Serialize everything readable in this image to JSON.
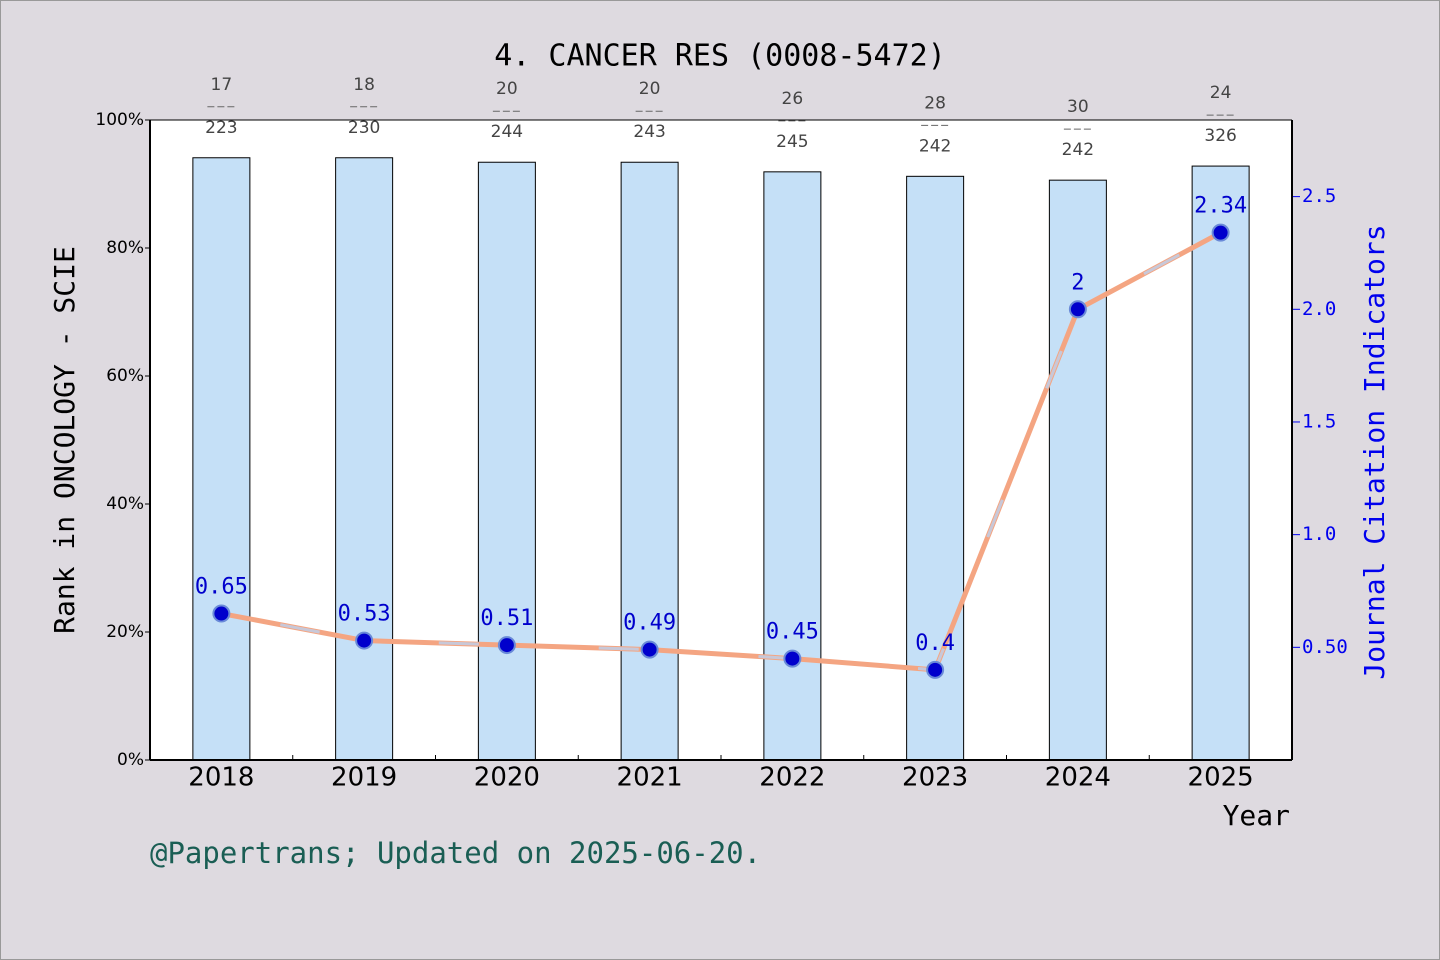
{
  "chart_data": {
    "type": "bar_line",
    "title": "4. CANCER RES (0008-5472)",
    "ylabel": "Rank in ONCOLOGY - SCIE",
    "y2label": "Journal Citation Indicators",
    "xlabel": "Year",
    "footer": "@Papertrans; Updated on 2025-06-20.",
    "categories": [
      "2018",
      "2019",
      "2020",
      "2021",
      "2022",
      "2023",
      "2024",
      "2025"
    ],
    "series": [
      {
        "name": "Rank",
        "color": "#c5e0f7",
        "values": [
          94.1,
          94.1,
          93.4,
          93.4,
          91.9,
          91.2,
          90.6,
          92.8
        ],
        "ranks": [
          "17",
          "18",
          "20",
          "20",
          "26",
          "28",
          "30",
          "24"
        ],
        "totals": [
          "223",
          "230",
          "244",
          "243",
          "245",
          "242",
          "242",
          "326"
        ]
      },
      {
        "name": "Journal Citation Indicators",
        "color": "#f4a582",
        "axis": "y2",
        "values": [
          0.65,
          0.53,
          0.51,
          0.49,
          0.45,
          0.4,
          2,
          2.34
        ]
      }
    ],
    "ylim": [
      0,
      100
    ],
    "yticks": [
      {
        "value": 0,
        "label": "0%"
      },
      {
        "value": 20,
        "label": "20%"
      },
      {
        "value": 40,
        "label": "40%"
      },
      {
        "value": 60,
        "label": "60%"
      },
      {
        "value": 80,
        "label": "80%"
      },
      {
        "value": 100,
        "label": "100%"
      }
    ],
    "y2lim": [
      0,
      2.84
    ],
    "y2ticks": [
      {
        "value": 0.5,
        "label": "0.50"
      },
      {
        "value": 1,
        "label": "1.0"
      },
      1.5,
      {
        "value": 2,
        "label": "2.0"
      },
      2.5
    ]
  }
}
